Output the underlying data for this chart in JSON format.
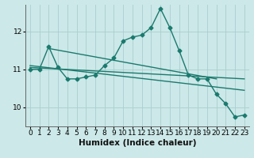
{
  "x": [
    0,
    1,
    2,
    3,
    4,
    5,
    6,
    7,
    8,
    9,
    10,
    11,
    12,
    13,
    14,
    15,
    16,
    17,
    18,
    19,
    20,
    21,
    22,
    23
  ],
  "main_line": [
    11.0,
    11.0,
    11.6,
    11.05,
    10.75,
    10.75,
    10.8,
    10.85,
    11.1,
    11.3,
    11.75,
    11.85,
    11.9,
    12.1,
    12.6,
    12.1,
    11.5,
    10.85,
    10.75,
    10.75,
    10.35,
    10.1,
    9.75,
    9.8
  ],
  "trend1_x": [
    0,
    23
  ],
  "trend1_y": [
    11.05,
    10.75
  ],
  "trend2_x": [
    0,
    23
  ],
  "trend2_y": [
    11.1,
    10.45
  ],
  "trend3_x": [
    2,
    20
  ],
  "trend3_y": [
    11.55,
    10.75
  ],
  "bg_color": "#cce8e8",
  "line_color": "#1a7a6e",
  "grid_color": "#aacece",
  "xlabel": "Humidex (Indice chaleur)",
  "xlim": [
    -0.5,
    23.5
  ],
  "ylim": [
    9.5,
    12.7
  ],
  "yticks": [
    10,
    11,
    12
  ],
  "xticks": [
    0,
    1,
    2,
    3,
    4,
    5,
    6,
    7,
    8,
    9,
    10,
    11,
    12,
    13,
    14,
    15,
    16,
    17,
    18,
    19,
    20,
    21,
    22,
    23
  ],
  "xlabel_fontsize": 7.5,
  "tick_fontsize": 6.5,
  "marker": "D",
  "marker_size": 2.5,
  "line_width": 1.0
}
